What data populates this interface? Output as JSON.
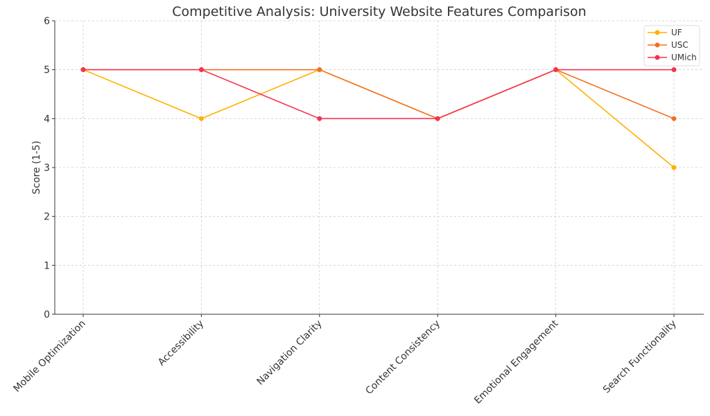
{
  "chart_data": {
    "type": "line",
    "title": "Competitive Analysis: University Website Features Comparison",
    "xlabel": "",
    "ylabel": "Score (1-5)",
    "ylim": [
      0,
      6
    ],
    "yticks": [
      "0",
      "1",
      "2",
      "3",
      "4",
      "5",
      "6"
    ],
    "grid": true,
    "legend_position": "top-right",
    "categories": [
      "Mobile Optimization",
      "Accessibility",
      "Navigation Clarity",
      "Content Consistency",
      "Emotional Engagement",
      "Search Functionality"
    ],
    "series": [
      {
        "name": "UF",
        "color": "#FFB000",
        "values": [
          5,
          4,
          5,
          4,
          5,
          3
        ]
      },
      {
        "name": "USC",
        "color": "#F37021",
        "values": [
          5,
          5,
          5,
          4,
          5,
          4
        ]
      },
      {
        "name": "UMich",
        "color": "#F5334F",
        "values": [
          5,
          5,
          4,
          4,
          5,
          5
        ]
      }
    ]
  }
}
